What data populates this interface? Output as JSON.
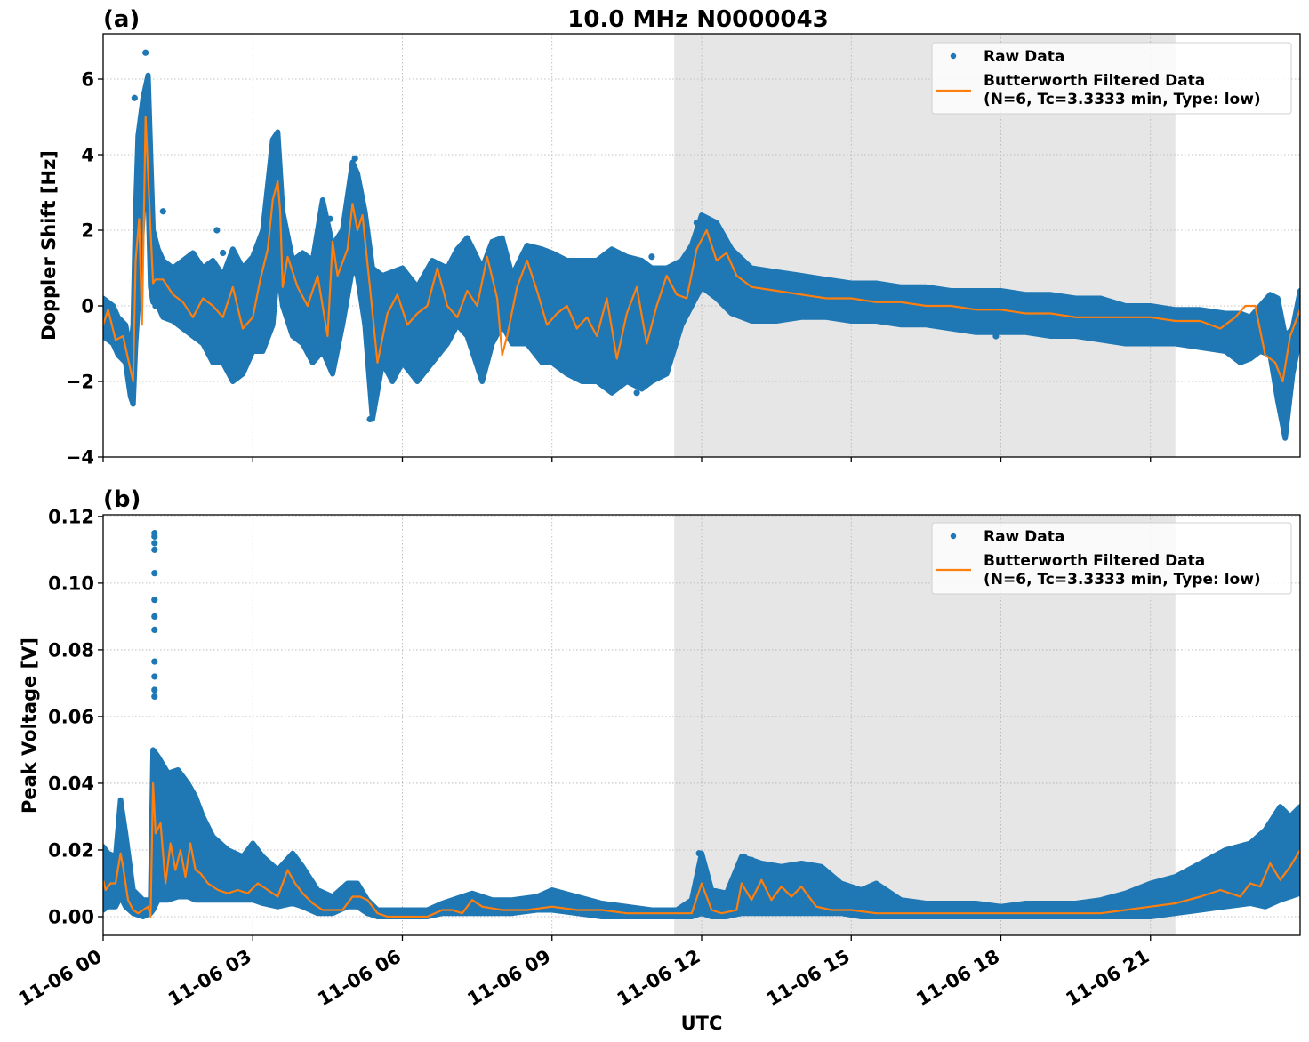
{
  "figure": {
    "title": "10.0 MHz N0000043",
    "xlabel": "UTC",
    "colors": {
      "raw": "#1f77b4",
      "filtered": "#ff7f0e",
      "shade": "#e6e6e6",
      "grid": "#b0b0b0"
    },
    "shaded_region_hours": [
      11.45,
      21.5
    ]
  },
  "legend": {
    "raw_label": "Raw Data",
    "filtered_label_line1": "Butterworth Filtered Data",
    "filtered_label_line2": "(N=6, Tc=3.3333 min, Type: low)"
  },
  "chart_data": [
    {
      "panel": "(a)",
      "type": "scatter",
      "title": "10.0 MHz N0000043",
      "xlabel": "",
      "ylabel": "Doppler Shift [Hz]",
      "xlim_hours": [
        0,
        24
      ],
      "ylim": [
        -4,
        7.2
      ],
      "yticks": [
        -4,
        -2,
        0,
        2,
        4,
        6
      ],
      "ytick_labels": [
        "−4",
        "−2",
        "0",
        "2",
        "4",
        "6"
      ],
      "xtick_labels": [
        "11-06 00",
        "11-06 03",
        "11-06 06",
        "11-06 09",
        "11-06 12",
        "11-06 15",
        "11-06 18",
        "11-06 21"
      ],
      "grid": true,
      "legend_position": "upper right",
      "series": [
        {
          "name": "Raw Data (envelope)",
          "x": [
            0,
            0.2,
            0.3,
            0.45,
            0.55,
            0.6,
            0.65,
            0.7,
            0.8,
            0.9,
            0.95,
            1.0,
            1.1,
            1.2,
            1.4,
            1.6,
            1.8,
            2.0,
            2.2,
            2.4,
            2.6,
            2.8,
            3.0,
            3.2,
            3.4,
            3.5,
            3.6,
            3.8,
            4.0,
            4.2,
            4.4,
            4.6,
            4.8,
            5.0,
            5.1,
            5.25,
            5.4,
            5.6,
            5.8,
            6.0,
            6.3,
            6.6,
            6.9,
            7.1,
            7.3,
            7.6,
            7.8,
            8.0,
            8.2,
            8.5,
            8.8,
            9.0,
            9.3,
            9.6,
            9.9,
            10.2,
            10.5,
            10.8,
            11.0,
            11.3,
            11.6,
            11.8,
            12.0,
            12.3,
            12.6,
            13.0,
            13.5,
            14.0,
            14.5,
            15.0,
            15.5,
            16.0,
            16.5,
            17.0,
            17.5,
            18.0,
            18.5,
            19.0,
            19.5,
            20.0,
            20.5,
            21.0,
            21.5,
            22.0,
            22.5,
            22.8,
            23.0,
            23.2,
            23.4,
            23.55,
            23.7,
            23.85,
            24.0
          ],
          "upper": [
            0.2,
            0.0,
            -0.3,
            -0.5,
            -1.2,
            -0.5,
            2.5,
            4.5,
            5.5,
            6.1,
            4.0,
            2.0,
            1.5,
            1.2,
            1.0,
            1.2,
            1.4,
            1.0,
            1.2,
            0.8,
            1.5,
            1.0,
            1.3,
            2.0,
            4.4,
            4.6,
            2.5,
            1.2,
            1.4,
            1.2,
            2.8,
            1.6,
            2.0,
            3.8,
            3.5,
            2.5,
            1.0,
            0.8,
            0.9,
            1.0,
            0.5,
            1.2,
            1.0,
            1.5,
            1.8,
            1.0,
            1.7,
            1.8,
            0.8,
            1.6,
            1.5,
            1.4,
            1.2,
            1.2,
            1.2,
            1.5,
            1.3,
            1.2,
            1.0,
            1.0,
            1.2,
            1.6,
            2.4,
            2.2,
            1.5,
            1.0,
            0.9,
            0.8,
            0.7,
            0.6,
            0.6,
            0.5,
            0.5,
            0.4,
            0.4,
            0.4,
            0.3,
            0.3,
            0.2,
            0.2,
            0.0,
            0.0,
            -0.1,
            -0.1,
            -0.2,
            -0.2,
            -0.3,
            0.0,
            0.3,
            0.2,
            -0.8,
            -0.6,
            0.4
          ],
          "lower": [
            -0.8,
            -1.0,
            -1.3,
            -1.5,
            -2.4,
            -2.6,
            -1.0,
            0.0,
            2.5,
            3.0,
            0.5,
            0.1,
            0.0,
            -0.3,
            -0.4,
            -0.6,
            -0.8,
            -1.0,
            -1.5,
            -1.5,
            -2.0,
            -1.8,
            -1.2,
            -1.2,
            -0.5,
            1.0,
            0.0,
            -0.8,
            -1.0,
            -1.5,
            -1.2,
            -1.8,
            -0.5,
            1.0,
            0.8,
            -0.5,
            -3.0,
            -1.5,
            -2.0,
            -1.5,
            -2.0,
            -1.5,
            -1.0,
            -0.5,
            -0.8,
            -2.0,
            -1.0,
            -0.5,
            -1.0,
            -1.0,
            -1.5,
            -1.5,
            -1.8,
            -2.0,
            -2.0,
            -2.3,
            -2.0,
            -2.2,
            -2.0,
            -1.8,
            -0.5,
            0.0,
            0.5,
            0.2,
            -0.2,
            -0.4,
            -0.4,
            -0.3,
            -0.3,
            -0.4,
            -0.4,
            -0.5,
            -0.5,
            -0.6,
            -0.7,
            -0.7,
            -0.7,
            -0.8,
            -0.8,
            -0.9,
            -1.0,
            -1.0,
            -1.0,
            -1.1,
            -1.2,
            -1.5,
            -1.4,
            -1.2,
            -1.3,
            -2.5,
            -3.5,
            -1.8,
            -0.8
          ]
        },
        {
          "name": "Butterworth Filtered Data",
          "x": [
            0,
            0.1,
            0.25,
            0.4,
            0.5,
            0.6,
            0.65,
            0.72,
            0.78,
            0.85,
            0.9,
            0.95,
            1.0,
            1.05,
            1.2,
            1.4,
            1.6,
            1.8,
            2.0,
            2.2,
            2.4,
            2.6,
            2.8,
            3.0,
            3.15,
            3.3,
            3.4,
            3.5,
            3.55,
            3.6,
            3.7,
            3.9,
            4.1,
            4.3,
            4.5,
            4.6,
            4.7,
            4.9,
            5.0,
            5.1,
            5.2,
            5.35,
            5.5,
            5.7,
            5.9,
            6.1,
            6.3,
            6.5,
            6.7,
            6.9,
            7.1,
            7.3,
            7.5,
            7.7,
            7.9,
            8.0,
            8.1,
            8.3,
            8.5,
            8.7,
            8.9,
            9.1,
            9.3,
            9.5,
            9.7,
            9.9,
            10.1,
            10.3,
            10.5,
            10.7,
            10.9,
            11.1,
            11.3,
            11.5,
            11.7,
            11.9,
            12.1,
            12.3,
            12.5,
            12.7,
            13.0,
            13.5,
            14.0,
            14.5,
            15.0,
            15.5,
            16.0,
            16.5,
            17.0,
            17.5,
            18.0,
            18.5,
            19.0,
            19.5,
            20.0,
            20.5,
            21.0,
            21.5,
            22.0,
            22.4,
            22.7,
            22.9,
            23.1,
            23.3,
            23.5,
            23.65,
            23.8,
            24.0
          ],
          "y": [
            -0.5,
            -0.1,
            -0.9,
            -0.8,
            -1.4,
            -2.0,
            1.2,
            2.3,
            -0.5,
            5.0,
            3.5,
            2.0,
            0.6,
            0.7,
            0.7,
            0.3,
            0.1,
            -0.3,
            0.2,
            0.0,
            -0.3,
            0.5,
            -0.6,
            -0.3,
            0.7,
            1.5,
            2.8,
            3.3,
            2.5,
            0.5,
            1.3,
            0.5,
            0.0,
            0.8,
            -0.8,
            1.7,
            0.8,
            1.5,
            2.7,
            2.0,
            2.4,
            0.5,
            -1.5,
            -0.2,
            0.3,
            -0.5,
            -0.2,
            0.0,
            1.0,
            0.0,
            -0.3,
            0.4,
            0.0,
            1.3,
            0.2,
            -1.3,
            -0.8,
            0.5,
            1.2,
            0.4,
            -0.5,
            -0.2,
            0.0,
            -0.6,
            -0.3,
            -0.8,
            0.2,
            -1.4,
            -0.2,
            0.5,
            -1.0,
            0.0,
            0.8,
            0.3,
            0.2,
            1.5,
            2.0,
            1.2,
            1.4,
            0.8,
            0.5,
            0.4,
            0.3,
            0.2,
            0.2,
            0.1,
            0.1,
            0.0,
            0.0,
            -0.1,
            -0.1,
            -0.2,
            -0.2,
            -0.3,
            -0.3,
            -0.3,
            -0.3,
            -0.4,
            -0.4,
            -0.6,
            -0.3,
            0.0,
            0.0,
            -1.3,
            -1.5,
            -2.0,
            -0.8,
            -0.1
          ]
        },
        {
          "name": "Raw Data (outliers)",
          "x": [
            0.85,
            0.63,
            1.05,
            1.2,
            2.28,
            2.4,
            3.25,
            4.55,
            5.05,
            5.35,
            11.0,
            11.9,
            10.12,
            10.7,
            17.9
          ],
          "y": [
            6.7,
            5.5,
            0.0,
            2.5,
            2.0,
            1.4,
            2.0,
            2.3,
            3.9,
            -3.0,
            1.3,
            2.2,
            1.3,
            -2.3,
            -0.8
          ]
        }
      ]
    },
    {
      "panel": "(b)",
      "type": "scatter",
      "xlabel": "UTC",
      "ylabel": "Peak Voltage [V]",
      "xlim_hours": [
        0,
        24
      ],
      "ylim": [
        -0.0056,
        0.1205
      ],
      "yticks": [
        0.0,
        0.02,
        0.04,
        0.06,
        0.08,
        0.1,
        0.12
      ],
      "ytick_labels": [
        "0.00",
        "0.02",
        "0.04",
        "0.06",
        "0.08",
        "0.10",
        "0.12"
      ],
      "xtick_labels": [
        "11-06 00",
        "11-06 03",
        "11-06 06",
        "11-06 09",
        "11-06 12",
        "11-06 15",
        "11-06 18",
        "11-06 21"
      ],
      "grid": true,
      "legend_position": "upper right",
      "series": [
        {
          "name": "Raw Data (envelope)",
          "x": [
            0,
            0.1,
            0.25,
            0.35,
            0.45,
            0.6,
            0.8,
            0.95,
            1.0,
            1.1,
            1.3,
            1.5,
            1.7,
            1.85,
            2.0,
            2.2,
            2.5,
            2.8,
            3.0,
            3.2,
            3.5,
            3.8,
            4.0,
            4.3,
            4.6,
            4.9,
            5.1,
            5.3,
            5.5,
            5.7,
            6.0,
            6.5,
            6.8,
            7.0,
            7.4,
            7.8,
            8.2,
            8.7,
            9.0,
            9.5,
            10.0,
            10.5,
            11.0,
            11.5,
            11.8,
            12.0,
            12.2,
            12.5,
            12.8,
            13.2,
            13.6,
            14.0,
            14.4,
            14.8,
            15.2,
            15.5,
            16.0,
            16.5,
            17.0,
            17.5,
            18.0,
            18.5,
            19.0,
            19.5,
            20.0,
            20.5,
            21.0,
            21.5,
            22.0,
            22.5,
            23.0,
            23.3,
            23.6,
            23.8,
            24.0
          ],
          "upper": [
            0.021,
            0.019,
            0.018,
            0.035,
            0.025,
            0.008,
            0.005,
            0.005,
            0.05,
            0.048,
            0.043,
            0.044,
            0.04,
            0.036,
            0.03,
            0.024,
            0.02,
            0.018,
            0.022,
            0.018,
            0.014,
            0.019,
            0.015,
            0.008,
            0.006,
            0.01,
            0.01,
            0.005,
            0.002,
            0.002,
            0.002,
            0.002,
            0.004,
            0.005,
            0.007,
            0.005,
            0.005,
            0.006,
            0.008,
            0.006,
            0.004,
            0.003,
            0.002,
            0.002,
            0.005,
            0.019,
            0.008,
            0.007,
            0.018,
            0.016,
            0.015,
            0.016,
            0.015,
            0.01,
            0.008,
            0.01,
            0.005,
            0.004,
            0.004,
            0.004,
            0.003,
            0.004,
            0.004,
            0.004,
            0.005,
            0.007,
            0.01,
            0.012,
            0.016,
            0.02,
            0.022,
            0.026,
            0.033,
            0.03,
            0.033
          ],
          "lower": [
            0.002,
            0.003,
            0.003,
            0.006,
            0.003,
            0.001,
            0.0,
            0.001,
            0.002,
            0.005,
            0.005,
            0.006,
            0.006,
            0.005,
            0.005,
            0.005,
            0.005,
            0.005,
            0.005,
            0.004,
            0.003,
            0.004,
            0.003,
            0.001,
            0.001,
            0.003,
            0.003,
            0.001,
            0.0,
            0.0,
            0.0,
            0.0,
            0.001,
            0.001,
            0.001,
            0.001,
            0.001,
            0.002,
            0.002,
            0.001,
            0.0,
            0.0,
            0.0,
            0.0,
            0.0,
            0.001,
            0.0,
            0.0,
            0.001,
            0.001,
            0.001,
            0.001,
            0.001,
            0.001,
            0.0,
            0.0,
            0.0,
            0.0,
            0.0,
            0.0,
            0.0,
            0.0,
            0.0,
            0.0,
            0.0,
            0.0,
            0.0,
            0.001,
            0.002,
            0.003,
            0.004,
            0.003,
            0.005,
            0.006,
            0.007
          ]
        },
        {
          "name": "Butterworth Filtered Data",
          "x": [
            0,
            0.05,
            0.15,
            0.25,
            0.35,
            0.4,
            0.5,
            0.6,
            0.7,
            0.8,
            0.9,
            0.95,
            1.0,
            1.05,
            1.15,
            1.25,
            1.35,
            1.45,
            1.55,
            1.65,
            1.75,
            1.85,
            1.95,
            2.1,
            2.3,
            2.5,
            2.7,
            2.9,
            3.1,
            3.3,
            3.5,
            3.7,
            3.85,
            4.0,
            4.2,
            4.4,
            4.6,
            4.8,
            5.0,
            5.15,
            5.3,
            5.5,
            5.7,
            6.0,
            6.5,
            6.8,
            7.0,
            7.2,
            7.4,
            7.6,
            8.0,
            8.5,
            9.0,
            9.5,
            10.0,
            10.5,
            11.0,
            11.5,
            11.8,
            12.0,
            12.2,
            12.4,
            12.7,
            12.8,
            13.0,
            13.2,
            13.4,
            13.6,
            13.8,
            14.0,
            14.3,
            14.6,
            15.0,
            15.5,
            16.0,
            17.0,
            18.0,
            19.0,
            20.0,
            20.5,
            21.0,
            21.5,
            22.0,
            22.4,
            22.8,
            23.0,
            23.2,
            23.4,
            23.6,
            23.8,
            24.0
          ],
          "y": [
            0.011,
            0.008,
            0.01,
            0.01,
            0.019,
            0.015,
            0.005,
            0.002,
            0.001,
            0.002,
            0.003,
            0.0,
            0.04,
            0.025,
            0.028,
            0.01,
            0.022,
            0.014,
            0.02,
            0.012,
            0.022,
            0.014,
            0.013,
            0.01,
            0.008,
            0.007,
            0.008,
            0.007,
            0.01,
            0.008,
            0.006,
            0.014,
            0.01,
            0.007,
            0.004,
            0.002,
            0.002,
            0.002,
            0.006,
            0.006,
            0.005,
            0.001,
            0.0,
            0.0,
            0.0,
            0.002,
            0.002,
            0.001,
            0.005,
            0.003,
            0.002,
            0.002,
            0.003,
            0.002,
            0.002,
            0.001,
            0.001,
            0.001,
            0.001,
            0.01,
            0.002,
            0.001,
            0.002,
            0.01,
            0.005,
            0.011,
            0.005,
            0.009,
            0.006,
            0.009,
            0.003,
            0.002,
            0.002,
            0.001,
            0.001,
            0.001,
            0.001,
            0.001,
            0.001,
            0.002,
            0.003,
            0.004,
            0.006,
            0.008,
            0.006,
            0.01,
            0.009,
            0.016,
            0.011,
            0.015,
            0.02
          ]
        },
        {
          "name": "Raw Data (outliers)",
          "x": [
            1.03,
            1.03,
            1.03,
            1.03,
            1.03,
            1.03,
            1.03,
            1.03,
            1.03,
            1.03,
            1.03,
            1.03,
            11.95,
            12.85,
            13.0
          ],
          "y": [
            0.115,
            0.114,
            0.112,
            0.11,
            0.103,
            0.095,
            0.09,
            0.086,
            0.0765,
            0.072,
            0.068,
            0.066,
            0.019,
            0.018,
            0.017
          ]
        }
      ]
    }
  ]
}
